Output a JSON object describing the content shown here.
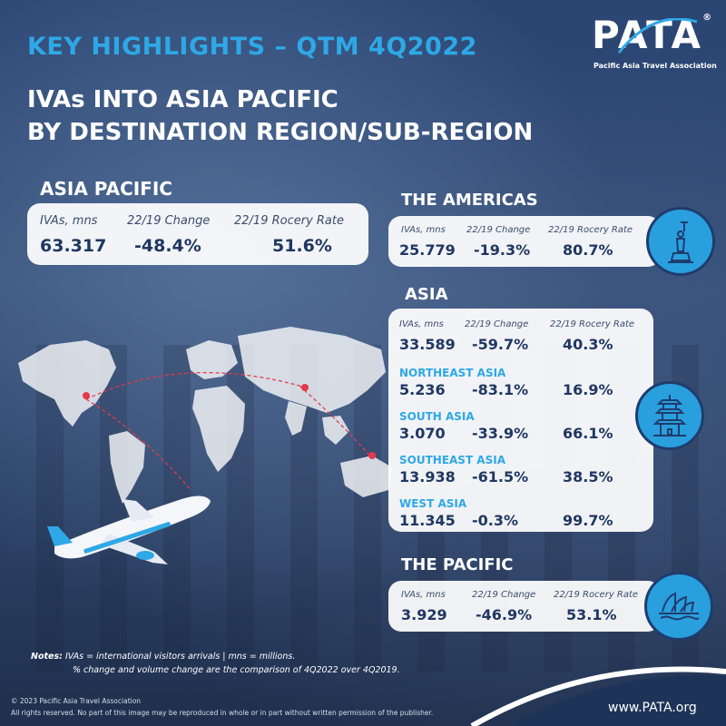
{
  "header": {
    "title": "KEY HIGHLIGHTS – QTM 4Q2022",
    "subtitle_line1": "IVAs INTO ASIA PACIFIC",
    "subtitle_line2": "BY DESTINATION REGION/SUB-REGION"
  },
  "logo": {
    "word": "PATA",
    "registered": "®",
    "tagline": "Pacific Asia Travel Association"
  },
  "columns": {
    "ivas": "IVAs, mns",
    "change": "22/19 Change",
    "recovery": "22/19 Rocery Rate"
  },
  "asia_pacific": {
    "heading": "ASIA PACIFIC",
    "ivas": "63.317",
    "change": "-48.4%",
    "recovery": "51.6%"
  },
  "americas": {
    "heading": "THE AMERICAS",
    "ivas": "25.779",
    "change": "-19.3%",
    "recovery": "80.7%",
    "icon": "statue-of-liberty-icon"
  },
  "asia": {
    "heading": "ASIA",
    "ivas": "33.589",
    "change": "-59.7%",
    "recovery": "40.3%",
    "icon": "pagoda-icon",
    "subregions": [
      {
        "name": "NORTHEAST ASIA",
        "ivas": "5.236",
        "change": "-83.1%",
        "recovery": "16.9%"
      },
      {
        "name": "SOUTH ASIA",
        "ivas": "3.070",
        "change": "-33.9%",
        "recovery": "66.1%"
      },
      {
        "name": "SOUTHEAST ASIA",
        "ivas": "13.938",
        "change": "-61.5%",
        "recovery": "38.5%"
      },
      {
        "name": "WEST ASIA",
        "ivas": "11.345",
        "change": "-0.3%",
        "recovery": "99.7%"
      }
    ]
  },
  "pacific": {
    "heading": "THE PACIFIC",
    "ivas": "3.929",
    "change": "-46.9%",
    "recovery": "53.1%",
    "icon": "sydney-opera-house-icon"
  },
  "notes": {
    "label": "Notes:",
    "line1": "IVAs = international visitors arrivals | mns = millions.",
    "line2": "% change and volume change are the comparison of 4Q2022 over 4Q2019."
  },
  "footer": {
    "copyright": "© 2023 Pacific Asia Travel Association",
    "rights": "All rights reserved. No part of this image may be reproduced in whole or in part without written permission of the publisher.",
    "url": "www.PATA.org"
  },
  "colors": {
    "accent": "#2ea8e6",
    "navy": "#1f3761",
    "card": "#ffffff"
  }
}
